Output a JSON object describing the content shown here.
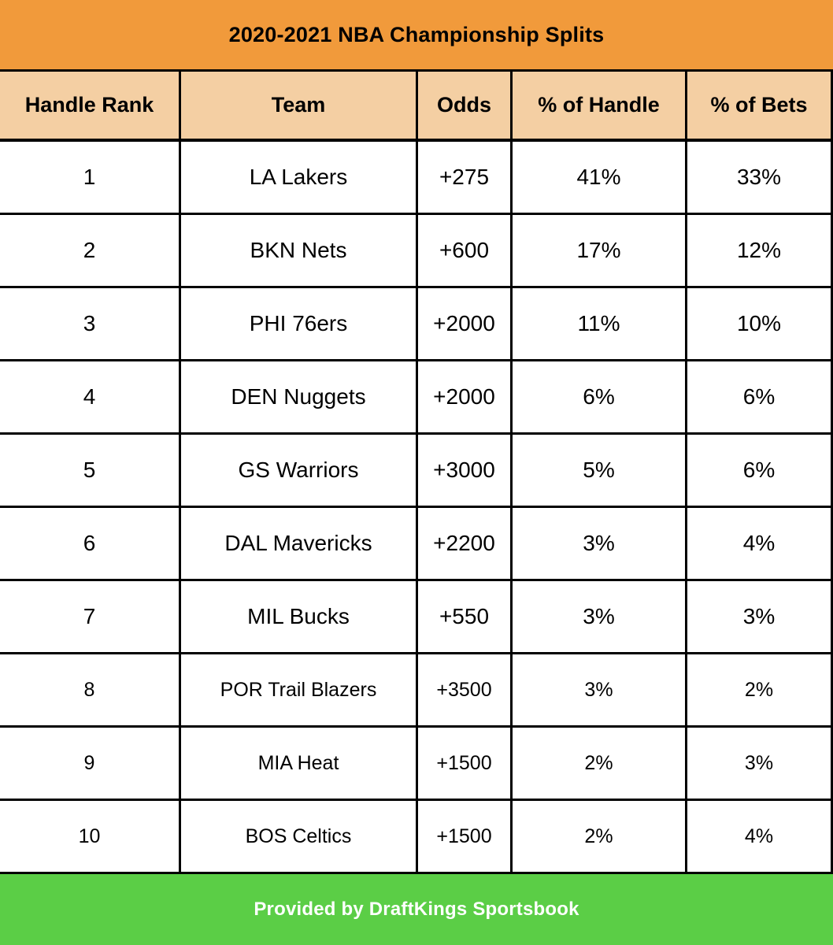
{
  "title": "2020-2021 NBA Championship Splits",
  "table": {
    "columns": [
      "Handle Rank",
      "Team",
      "Odds",
      "% of Handle",
      "% of Bets"
    ],
    "rows": [
      {
        "rank": "1",
        "team": "LA Lakers",
        "odds": "+275",
        "handle_pct": "41%",
        "bets_pct": "33%"
      },
      {
        "rank": "2",
        "team": "BKN Nets",
        "odds": "+600",
        "handle_pct": "17%",
        "bets_pct": "12%"
      },
      {
        "rank": "3",
        "team": "PHI 76ers",
        "odds": "+2000",
        "handle_pct": "11%",
        "bets_pct": "10%"
      },
      {
        "rank": "4",
        "team": "DEN Nuggets",
        "odds": "+2000",
        "handle_pct": "6%",
        "bets_pct": "6%"
      },
      {
        "rank": "5",
        "team": "GS Warriors",
        "odds": "+3000",
        "handle_pct": "5%",
        "bets_pct": "6%"
      },
      {
        "rank": "6",
        "team": "DAL Mavericks",
        "odds": "+2200",
        "handle_pct": "3%",
        "bets_pct": "4%"
      },
      {
        "rank": "7",
        "team": "MIL Bucks",
        "odds": "+550",
        "handle_pct": "3%",
        "bets_pct": "3%"
      },
      {
        "rank": "8",
        "team": "POR Trail Blazers",
        "odds": "+3500",
        "handle_pct": "3%",
        "bets_pct": "2%"
      },
      {
        "rank": "9",
        "team": "MIA Heat",
        "odds": "+1500",
        "handle_pct": "2%",
        "bets_pct": "3%"
      },
      {
        "rank": "10",
        "team": "BOS Celtics",
        "odds": "+1500",
        "handle_pct": "2%",
        "bets_pct": "4%"
      }
    ]
  },
  "footer": {
    "text": "Provided by DraftKings Sportsbook"
  },
  "colors": {
    "header_bg": "#F19A3B",
    "column_header_bg": "#F4CFA3",
    "footer_bg": "#5BCE46",
    "border": "#000000",
    "footer_text": "#FFFFFF"
  },
  "chart_data": {
    "type": "table",
    "title": "2020-2021 NBA Championship Splits",
    "columns": [
      "Handle Rank",
      "Team",
      "Odds",
      "% of Handle",
      "% of Bets"
    ],
    "rows": [
      [
        "1",
        "LA Lakers",
        "+275",
        "41%",
        "33%"
      ],
      [
        "2",
        "BKN Nets",
        "+600",
        "17%",
        "12%"
      ],
      [
        "3",
        "PHI 76ers",
        "+2000",
        "11%",
        "10%"
      ],
      [
        "4",
        "DEN Nuggets",
        "+2000",
        "6%",
        "6%"
      ],
      [
        "5",
        "GS Warriors",
        "+3000",
        "5%",
        "6%"
      ],
      [
        "6",
        "DAL Mavericks",
        "+2200",
        "3%",
        "4%"
      ],
      [
        "7",
        "MIL Bucks",
        "+550",
        "3%",
        "3%"
      ],
      [
        "8",
        "POR Trail Blazers",
        "+3500",
        "3%",
        "2%"
      ],
      [
        "9",
        "MIA Heat",
        "+1500",
        "2%",
        "3%"
      ],
      [
        "10",
        "BOS Celtics",
        "+1500",
        "2%",
        "4%"
      ]
    ],
    "attribution": "Provided by DraftKings Sportsbook",
    "handle_pct_values": [
      41,
      17,
      11,
      6,
      5,
      3,
      3,
      3,
      2,
      2
    ],
    "bets_pct_values": [
      33,
      12,
      10,
      6,
      6,
      4,
      3,
      2,
      3,
      4
    ]
  }
}
